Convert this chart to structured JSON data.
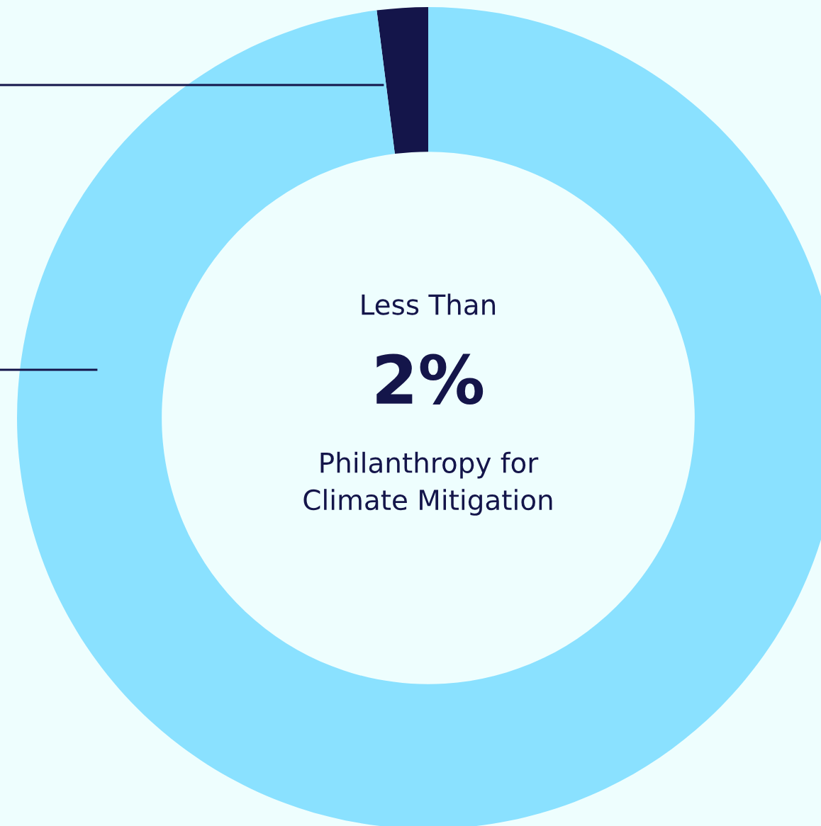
{
  "chart_data": {
    "type": "donut",
    "categories": [
      null,
      null
    ],
    "values": [
      2,
      98
    ],
    "colors": [
      "#14154a",
      "#8ae1ff"
    ],
    "value_labels": [
      "2%",
      null
    ],
    "annotations": [
      "Less Than",
      "Philanthropy for\nClimate Mitigation"
    ],
    "legend": false
  }
}
